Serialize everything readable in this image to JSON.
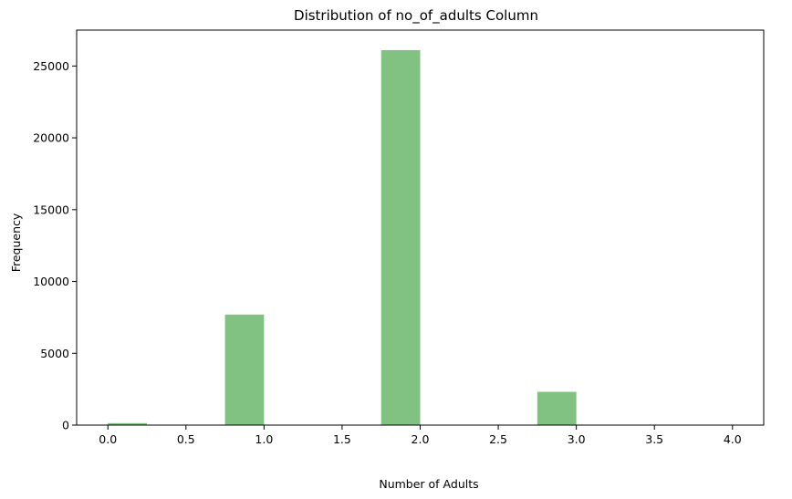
{
  "chart_data": {
    "type": "bar",
    "title": "Distribution of no_of_adults Column",
    "xlabel": "Number of Adults",
    "ylabel": "Frequency",
    "xlim": [
      -0.2,
      4.2
    ],
    "ylim": [
      0,
      27500
    ],
    "xticks": [
      0.0,
      0.5,
      1.0,
      1.5,
      2.0,
      2.5,
      3.0,
      3.5,
      4.0
    ],
    "xtick_labels": [
      "0.0",
      "0.5",
      "1.0",
      "1.5",
      "2.0",
      "2.5",
      "3.0",
      "3.5",
      "4.0"
    ],
    "yticks": [
      0,
      5000,
      10000,
      15000,
      20000,
      25000
    ],
    "ytick_labels": [
      "0",
      "5000",
      "10000",
      "15000",
      "20000",
      "25000"
    ],
    "bin_width": 0.25,
    "bars": [
      {
        "x0": 0.0,
        "x1": 0.25,
        "value": 139
      },
      {
        "x0": 0.75,
        "x1": 1.0,
        "value": 7695
      },
      {
        "x0": 1.75,
        "x1": 2.0,
        "value": 26108
      },
      {
        "x0": 2.75,
        "x1": 3.0,
        "value": 2317
      },
      {
        "x0": 3.75,
        "x1": 4.0,
        "value": 16
      }
    ],
    "bar_color": "#81c181",
    "grid": false,
    "legend": "none"
  }
}
